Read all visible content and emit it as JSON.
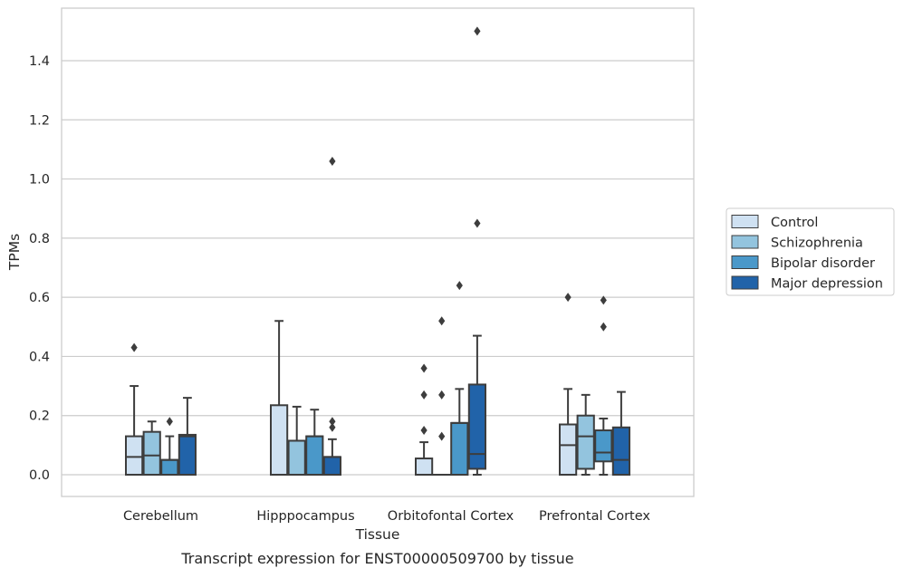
{
  "chart_data": {
    "type": "box",
    "caption": "Transcript expression for ENST00000509700 by tissue",
    "xlabel": "Tissue",
    "ylabel": "TPMs",
    "categories": [
      "Cerebellum",
      "Hipppocampus",
      "Orbitofontal Cortex",
      "Prefrontal Cortex"
    ],
    "ylim": [
      -0.07,
      1.58
    ],
    "yticks": [
      "0.0",
      "0.2",
      "0.4",
      "0.6",
      "0.8",
      "1.0",
      "1.2",
      "1.4"
    ],
    "grid": "horizontal",
    "legend_position": "right",
    "series": [
      {
        "name": "Control",
        "color": "#cfe1f2",
        "boxes": [
          {
            "whislo": 0.0,
            "q1": 0.0,
            "med": 0.06,
            "q3": 0.13,
            "whishi": 0.3,
            "fliers": [
              0.43
            ]
          },
          {
            "whislo": 0.0,
            "q1": 0.0,
            "med": 0.0,
            "q3": 0.235,
            "whishi": 0.52,
            "fliers": []
          },
          {
            "whislo": 0.0,
            "q1": 0.0,
            "med": 0.0,
            "q3": 0.055,
            "whishi": 0.11,
            "fliers": [
              0.15,
              0.27,
              0.36
            ]
          },
          {
            "whislo": 0.0,
            "q1": 0.0,
            "med": 0.1,
            "q3": 0.17,
            "whishi": 0.29,
            "fliers": [
              0.6
            ]
          }
        ]
      },
      {
        "name": "Schizophrenia",
        "color": "#93c4de",
        "boxes": [
          {
            "whislo": 0.0,
            "q1": 0.0,
            "med": 0.065,
            "q3": 0.145,
            "whishi": 0.18,
            "fliers": []
          },
          {
            "whislo": 0.0,
            "q1": 0.0,
            "med": 0.115,
            "q3": 0.115,
            "whishi": 0.23,
            "fliers": []
          },
          {
            "whislo": 0.0,
            "q1": 0.0,
            "med": 0.0,
            "q3": 0.0,
            "whishi": 0.0,
            "fliers": [
              0.13,
              0.27,
              0.52
            ]
          },
          {
            "whislo": 0.0,
            "q1": 0.02,
            "med": 0.13,
            "q3": 0.2,
            "whishi": 0.27,
            "fliers": []
          }
        ]
      },
      {
        "name": "Bipolar disorder",
        "color": "#4a98c9",
        "boxes": [
          {
            "whislo": 0.0,
            "q1": 0.0,
            "med": 0.05,
            "q3": 0.05,
            "whishi": 0.13,
            "fliers": [
              0.18
            ]
          },
          {
            "whislo": 0.0,
            "q1": 0.0,
            "med": 0.13,
            "q3": 0.13,
            "whishi": 0.22,
            "fliers": []
          },
          {
            "whislo": 0.0,
            "q1": 0.0,
            "med": 0.175,
            "q3": 0.175,
            "whishi": 0.29,
            "fliers": [
              0.64
            ]
          },
          {
            "whislo": 0.0,
            "q1": 0.045,
            "med": 0.075,
            "q3": 0.15,
            "whishi": 0.19,
            "fliers": [
              0.5,
              0.59
            ]
          }
        ]
      },
      {
        "name": "Major depression",
        "color": "#2163a9",
        "boxes": [
          {
            "whislo": 0.0,
            "q1": 0.0,
            "med": 0.13,
            "q3": 0.135,
            "whishi": 0.26,
            "fliers": []
          },
          {
            "whislo": 0.0,
            "q1": 0.0,
            "med": 0.06,
            "q3": 0.06,
            "whishi": 0.12,
            "fliers": [
              0.16,
              0.18,
              1.06
            ]
          },
          {
            "whislo": 0.0,
            "q1": 0.02,
            "med": 0.07,
            "q3": 0.305,
            "whishi": 0.47,
            "fliers": [
              0.85,
              1.5
            ]
          },
          {
            "whislo": 0.0,
            "q1": 0.0,
            "med": 0.05,
            "q3": 0.16,
            "whishi": 0.28,
            "fliers": []
          }
        ]
      }
    ]
  }
}
